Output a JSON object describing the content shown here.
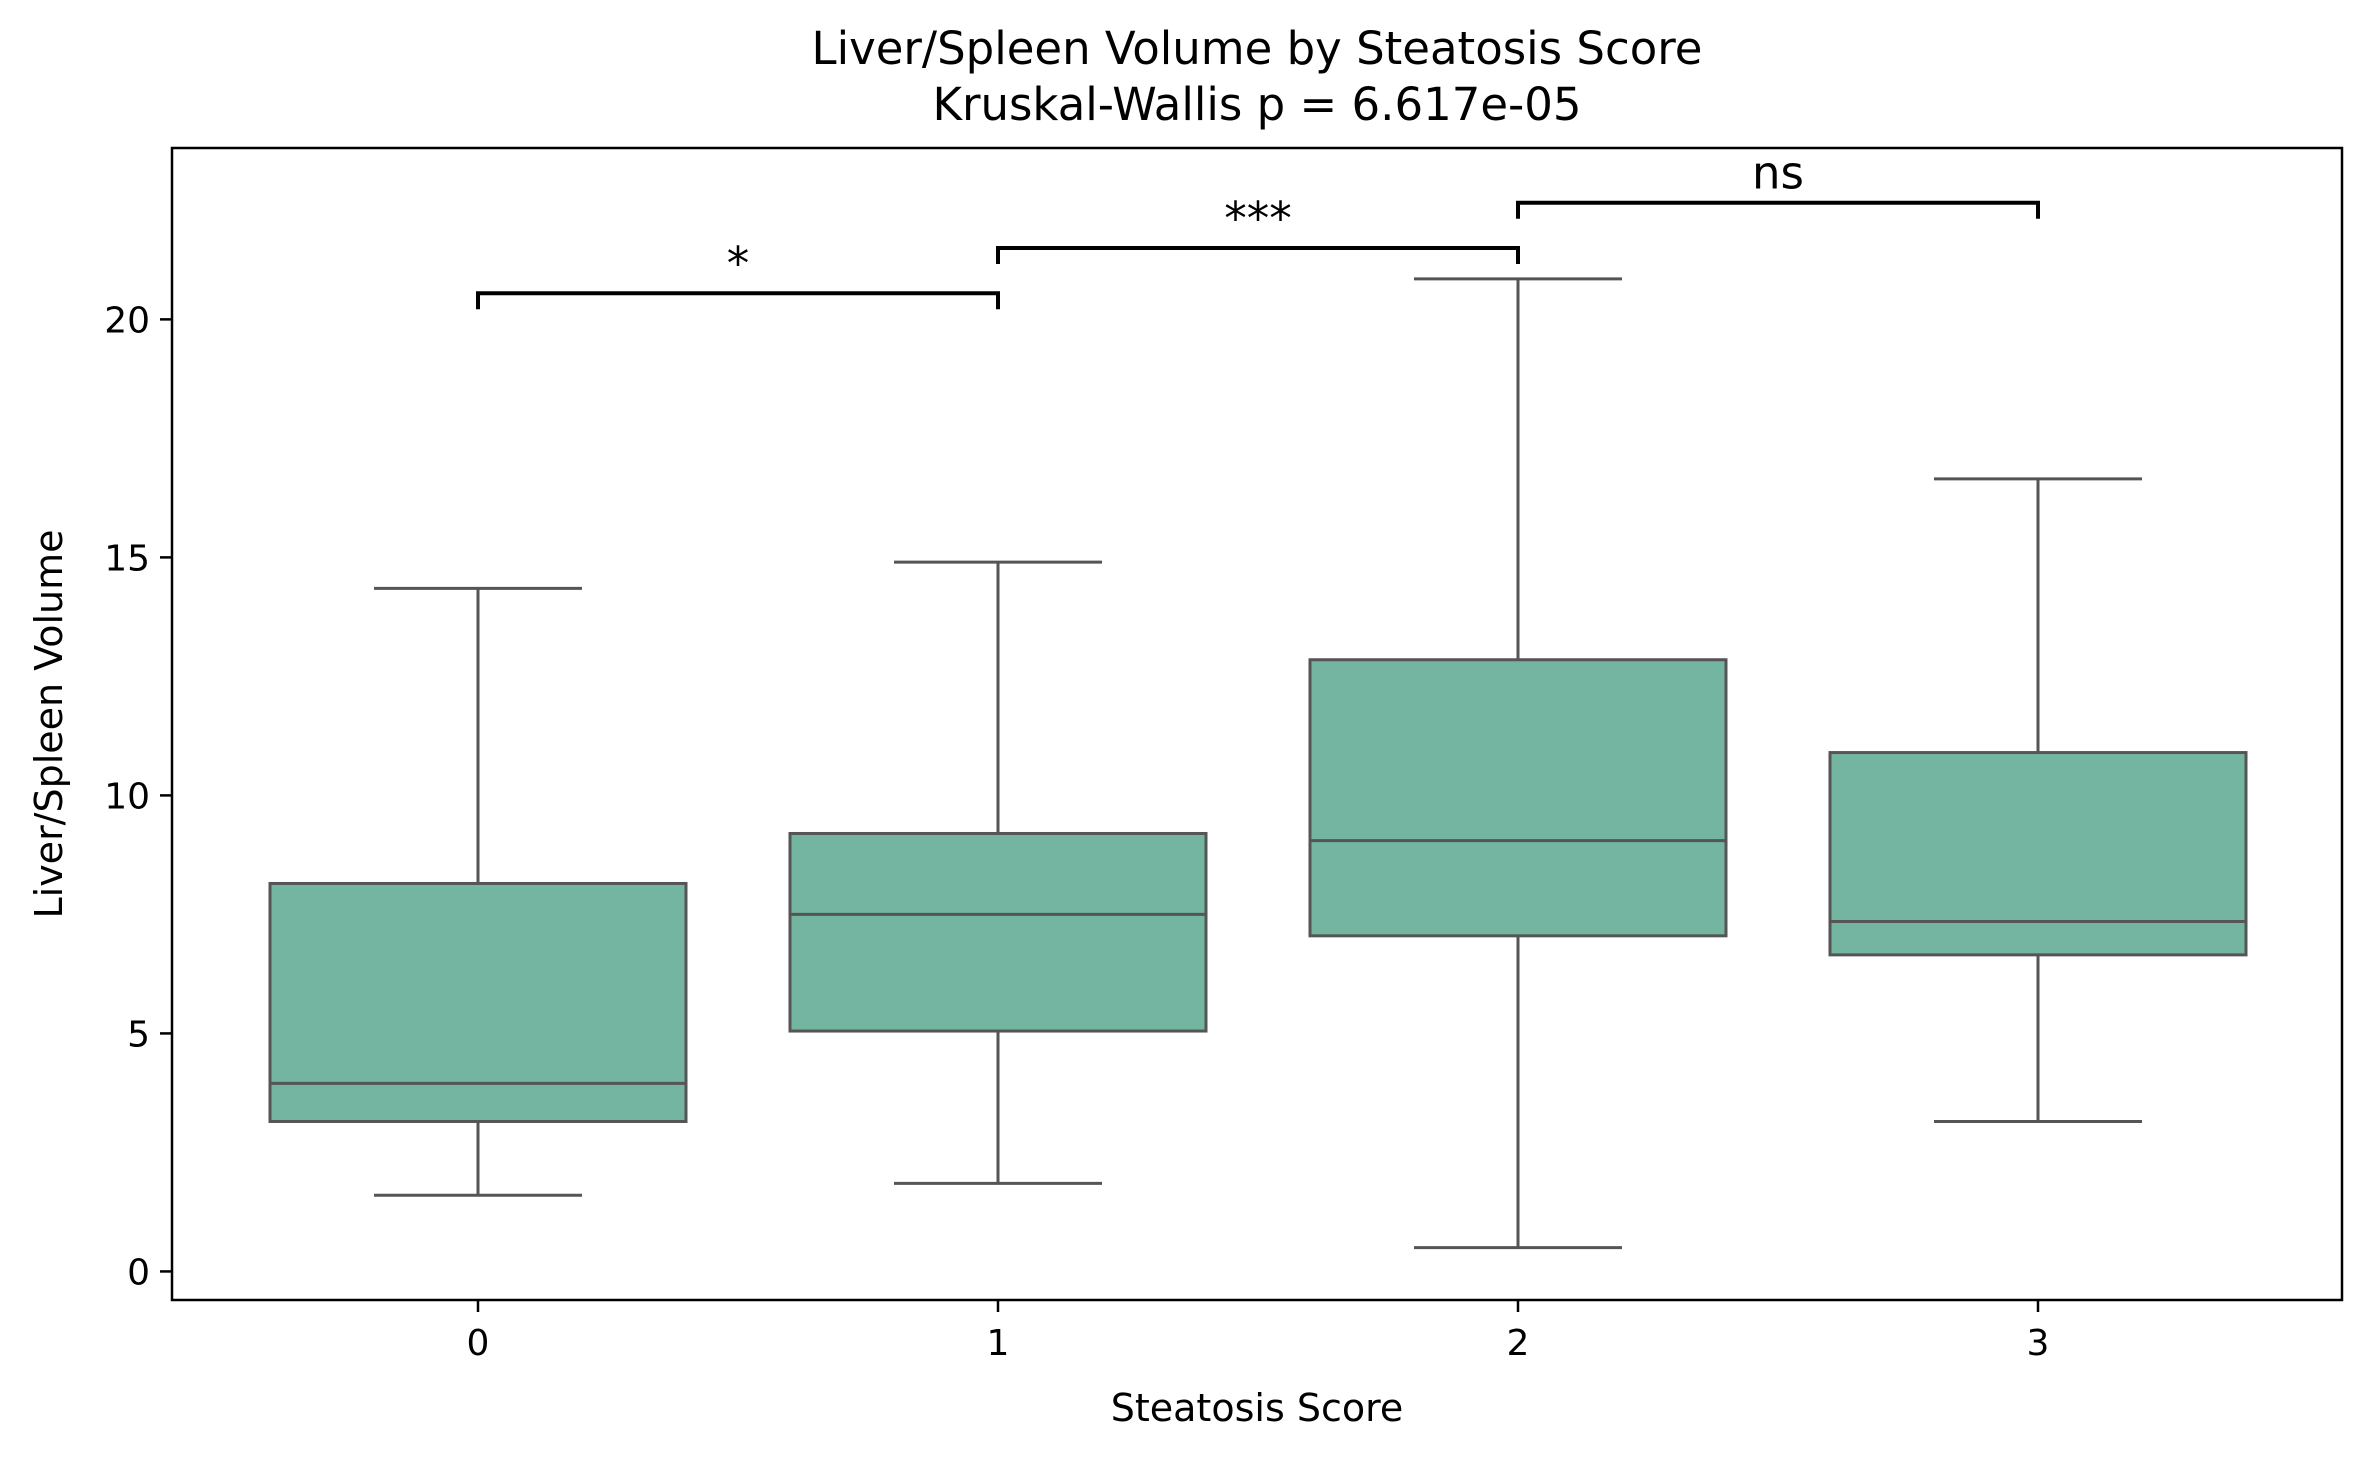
{
  "chart_data": {
    "type": "box",
    "title": "Liver/Spleen Volume by Steatosis Score",
    "subtitle": "Kruskal-Wallis p = 6.617e-05",
    "xlabel": "Steatosis Score",
    "ylabel": "Liver/Spleen Volume",
    "categories": [
      "0",
      "1",
      "2",
      "3"
    ],
    "ylim": [
      -0.6,
      23.6
    ],
    "yticks": [
      0,
      5,
      10,
      15,
      20
    ],
    "grid": false,
    "legend": "none",
    "box_color": "#73b5a1",
    "line_color": "#555555",
    "boxes": [
      {
        "category": "0",
        "whisker_low": 1.6,
        "q1": 3.15,
        "median": 3.95,
        "q3": 8.15,
        "whisker_high": 14.35
      },
      {
        "category": "1",
        "whisker_low": 1.85,
        "q1": 5.05,
        "median": 7.5,
        "q3": 9.2,
        "whisker_high": 14.9
      },
      {
        "category": "2",
        "whisker_low": 0.5,
        "q1": 7.05,
        "median": 9.05,
        "q3": 12.85,
        "whisker_high": 20.85
      },
      {
        "category": "3",
        "whisker_low": 3.15,
        "q1": 6.65,
        "median": 7.35,
        "q3": 10.9,
        "whisker_high": 16.65
      }
    ],
    "annotations": [
      {
        "from": "0",
        "to": "1",
        "label": "*",
        "y": 20.55
      },
      {
        "from": "1",
        "to": "2",
        "label": "***",
        "y": 21.5
      },
      {
        "from": "2",
        "to": "3",
        "label": "ns",
        "y": 22.45
      }
    ]
  }
}
